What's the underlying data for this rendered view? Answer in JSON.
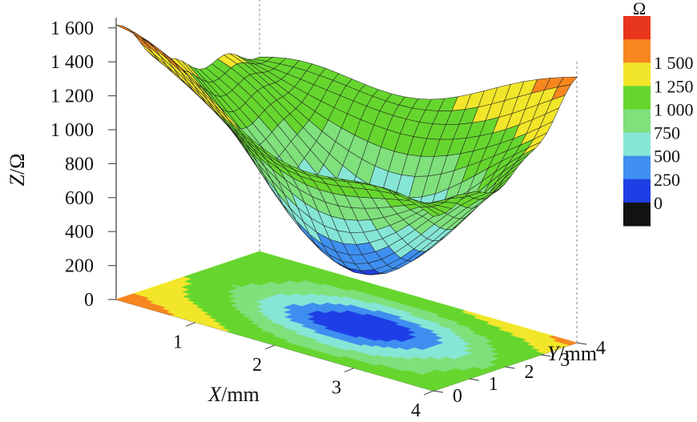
{
  "chart_data": {
    "type": "surface3d",
    "title": "",
    "z_axis": {
      "label_var": "Z",
      "label_unit": "Ω",
      "label_sep": "/",
      "ticks": [
        "0",
        "200",
        "400",
        "600",
        "800",
        "1 000",
        "1 200",
        "1 400",
        "1 600"
      ],
      "range": [
        0,
        1600
      ]
    },
    "x_axis": {
      "label_var": "X",
      "label_unit": "mm",
      "label_sep": "/",
      "ticks": [
        "1",
        "2",
        "3",
        "4"
      ],
      "range": [
        0,
        4
      ]
    },
    "y_axis": {
      "label_var": "Y",
      "label_unit": "mm",
      "label_sep": "/",
      "ticks": [
        "0",
        "1",
        "2",
        "3",
        "4"
      ],
      "range": [
        0,
        4
      ]
    },
    "colorbar": {
      "unit": "Ω",
      "levels": [
        {
          "label": "",
          "color": "#e8361d"
        },
        {
          "label": "1 500",
          "color": "#f7861f"
        },
        {
          "label": "1 250",
          "color": "#f2e62a"
        },
        {
          "label": "1 000",
          "color": "#66d62e"
        },
        {
          "label": "750",
          "color": "#7fe07c"
        },
        {
          "label": "500",
          "color": "#86e6d6"
        },
        {
          "label": "250",
          "color": "#3f8ff0"
        },
        {
          "label": "0",
          "color": "#1e3fe6"
        },
        {
          "label": "",
          "color": "#121212"
        }
      ]
    },
    "surface_minimum": {
      "x": 2.2,
      "y": 2.0,
      "z": 310
    },
    "surface_corners": {
      "x0_y0": 1650,
      "x4_y0": 1050,
      "x0_y4": 1150,
      "x4_y4": 1640
    },
    "grid": true,
    "legend_position": "right"
  }
}
